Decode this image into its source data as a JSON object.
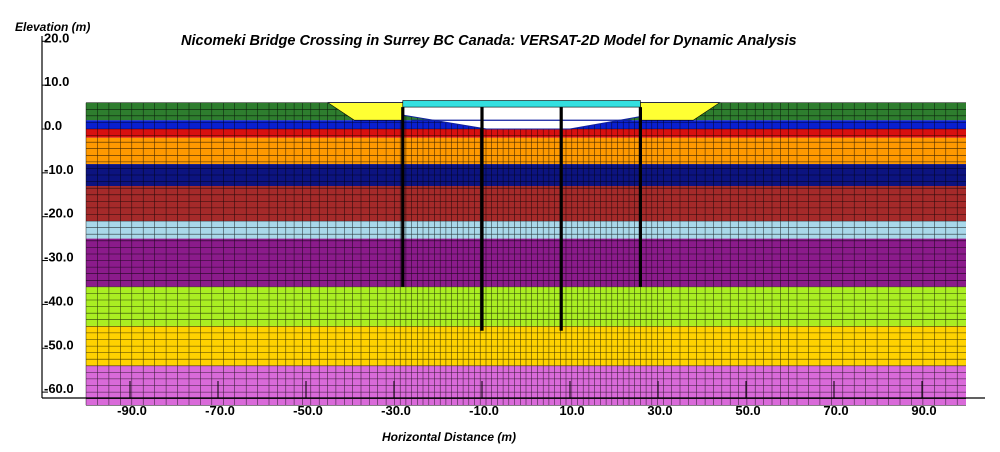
{
  "chart_data": {
    "type": "mesh",
    "title": "Nicomeki Bridge Crossing in Surrey BC Canada: VERSAT-2D Model for Dynamic Analysis",
    "ylabel": "Elevation (m)",
    "xlabel": "Horizontal Distance (m)",
    "xlim": [
      -110,
      100
    ],
    "ylim": [
      -66,
      23
    ],
    "x_ticks": [
      -90,
      -70,
      -50,
      -30,
      -10,
      10,
      30,
      50,
      70,
      90
    ],
    "x_tick_labels": [
      "-90.0",
      "-70.0",
      "-50.0",
      "-30.0",
      "-10.0",
      "10.0",
      "30.0",
      "50.0",
      "70.0",
      "90.0"
    ],
    "y_ticks": [
      20,
      10,
      0,
      -10,
      -20,
      -30,
      -40,
      -50,
      -60
    ],
    "y_tick_labels": [
      "20.0",
      "10.0",
      "0.0",
      "-10.0",
      "-20.0",
      "-30.0",
      "-40.0",
      "-50.0",
      "-60.0"
    ],
    "mesh_extent": {
      "x_min": -100,
      "x_max": 100,
      "y_top": 6,
      "y_bottom": -63
    },
    "layers": [
      {
        "top": 6,
        "bottom": 2,
        "color": "#2e7d2e"
      },
      {
        "top": 2,
        "bottom": 0,
        "color": "#0a1fcf"
      },
      {
        "top": 0,
        "bottom": -2,
        "color": "#d81010"
      },
      {
        "top": -2,
        "bottom": -8,
        "color": "#ff9900"
      },
      {
        "top": -8,
        "bottom": -13,
        "color": "#0c1380"
      },
      {
        "top": -13,
        "bottom": -21,
        "color": "#a52a2a"
      },
      {
        "top": -21,
        "bottom": -25,
        "color": "#a9d8ea"
      },
      {
        "top": -25,
        "bottom": -36,
        "color": "#8b1b8b"
      },
      {
        "top": -36,
        "bottom": -45,
        "color": "#aaee22"
      },
      {
        "top": -45,
        "bottom": -54,
        "color": "#ffd200"
      },
      {
        "top": -54,
        "bottom": -63,
        "color": "#d96ad9"
      }
    ],
    "channel": {
      "x_left": -45,
      "x_right": 44,
      "floor_x_left": -9,
      "floor_x_right": 10,
      "bank_top": 6,
      "floor": 0,
      "water_level": 2
    },
    "embankment_fill": {
      "color": "#ffff33",
      "left": [
        -45,
        -28
      ],
      "right": [
        26,
        44
      ],
      "top": 6,
      "bottom": 2
    },
    "deck": {
      "x_left": -28,
      "x_right": 26,
      "top": 6.5,
      "bottom": 5,
      "color": "#33e0e0"
    },
    "piles": [
      {
        "x": -28,
        "top": 5,
        "bottom": -36
      },
      {
        "x": -10,
        "top": 5,
        "bottom": -46
      },
      {
        "x": 8,
        "top": 5,
        "bottom": -46
      },
      {
        "x": 26,
        "top": 5,
        "bottom": -36
      }
    ]
  }
}
